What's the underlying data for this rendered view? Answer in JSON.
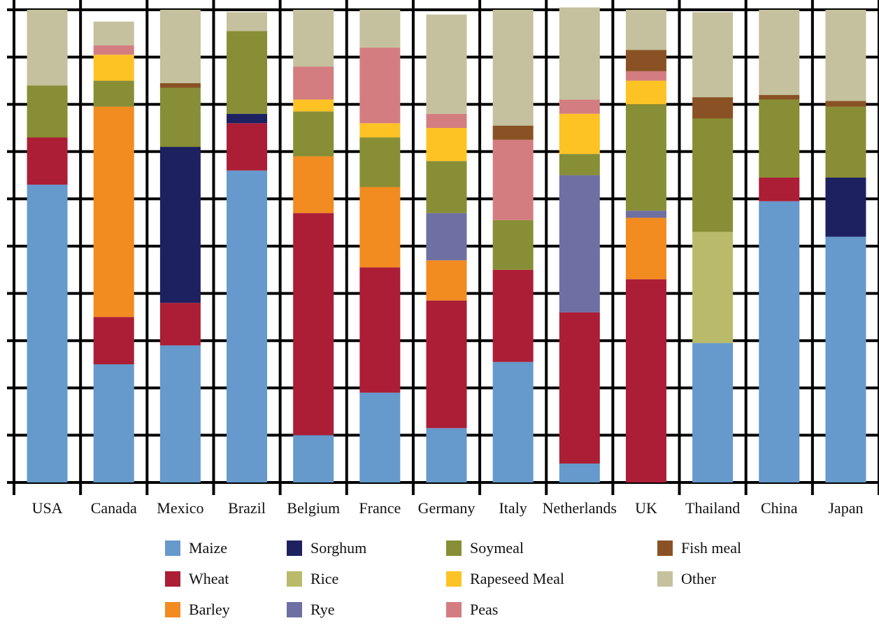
{
  "chart_data": {
    "type": "bar",
    "stacked": true,
    "normalized": true,
    "ylim": [
      0,
      1
    ],
    "grid": true,
    "legend_placement": "bottom",
    "categories": [
      "USA",
      "Canada",
      "Mexico",
      "Brazil",
      "Belgium",
      "France",
      "Germany",
      "Italy",
      "Netherlands",
      "UK",
      "Thailand",
      "China",
      "Japan"
    ],
    "series": [
      {
        "name": "Maize",
        "color": "#6699cc",
        "values": [
          0.63,
          0.25,
          0.29,
          0.66,
          0.1,
          0.19,
          0.115,
          0.255,
          0.04,
          0.0,
          0.295,
          0.595,
          0.52
        ]
      },
      {
        "name": "Wheat",
        "color": "#ab1e36",
        "values": [
          0.1,
          0.1,
          0.09,
          0.1,
          0.47,
          0.265,
          0.27,
          0.195,
          0.32,
          0.43,
          0.0,
          0.05,
          0.0
        ]
      },
      {
        "name": "Barley",
        "color": "#f28b20",
        "values": [
          0.0,
          0.445,
          0.0,
          0.0,
          0.12,
          0.17,
          0.085,
          0.0,
          0.0,
          0.13,
          0.0,
          0.0,
          0.0
        ]
      },
      {
        "name": "Sorghum",
        "color": "#1e2160",
        "values": [
          0.0,
          0.0,
          0.33,
          0.02,
          0.0,
          0.0,
          0.0,
          0.0,
          0.0,
          0.0,
          0.0,
          0.0,
          0.125
        ]
      },
      {
        "name": "Rice",
        "color": "#b9bb6a",
        "values": [
          0.0,
          0.0,
          0.0,
          0.0,
          0.0,
          0.0,
          0.0,
          0.0,
          0.0,
          0.0,
          0.235,
          0.0,
          0.0
        ]
      },
      {
        "name": "Rye",
        "color": "#6e6fa3",
        "values": [
          0.0,
          0.0,
          0.0,
          0.0,
          0.0,
          0.0,
          0.1,
          0.0,
          0.29,
          0.015,
          0.0,
          0.0,
          0.0
        ]
      },
      {
        "name": "Soymeal",
        "color": "#878e35",
        "values": [
          0.11,
          0.055,
          0.125,
          0.175,
          0.095,
          0.105,
          0.11,
          0.105,
          0.045,
          0.225,
          0.24,
          0.165,
          0.15
        ]
      },
      {
        "name": "Rapeseed Meal",
        "color": "#fdc324",
        "values": [
          0.0,
          0.055,
          0.0,
          0.0,
          0.025,
          0.03,
          0.07,
          0.0,
          0.085,
          0.05,
          0.0,
          0.0,
          0.0
        ]
      },
      {
        "name": "Peas",
        "color": "#d47d80",
        "values": [
          0.0,
          0.02,
          0.0,
          0.0,
          0.07,
          0.16,
          0.03,
          0.17,
          0.03,
          0.02,
          0.0,
          0.0,
          0.0
        ]
      },
      {
        "name": "Fish meal",
        "color": "#8a5224",
        "values": [
          0.0,
          0.0,
          0.01,
          0.0,
          0.0,
          0.0,
          0.0,
          0.03,
          0.0,
          0.045,
          0.045,
          0.01,
          0.012
        ]
      },
      {
        "name": "Other",
        "color": "#c5c19e",
        "values": [
          0.16,
          0.05,
          0.155,
          0.04,
          0.12,
          0.08,
          0.21,
          0.245,
          0.195,
          0.085,
          0.18,
          0.18,
          0.193
        ]
      }
    ]
  },
  "legend_order": [
    "Maize",
    "Wheat",
    "Barley",
    "Sorghum",
    "Rice",
    "Rye",
    "Soymeal",
    "Rapeseed Meal",
    "Peas",
    "Fish meal",
    "Other"
  ]
}
